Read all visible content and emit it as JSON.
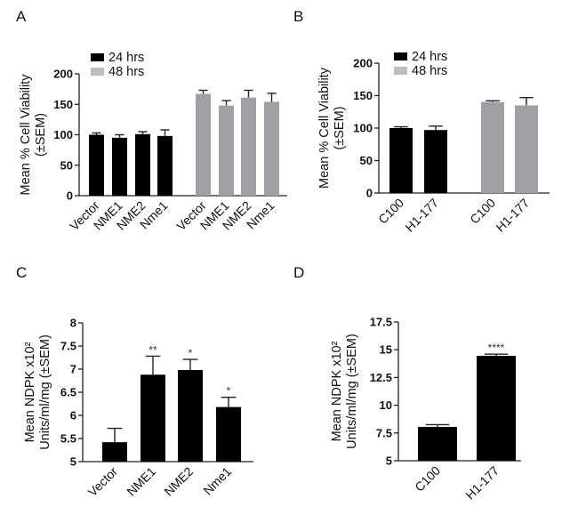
{
  "chart_data": [
    {
      "panel": "A",
      "type": "bar",
      "ylabel": [
        "Mean % Cell Viability",
        "(±SEM)"
      ],
      "ylim": [
        0,
        200
      ],
      "yticks": [
        "0",
        "50",
        "100",
        "150",
        "200"
      ],
      "legend": [
        "24 hrs",
        "48 hrs"
      ],
      "legend_placement": "top-left",
      "categories": [
        "Vector",
        "NME1",
        "NME2",
        "Nme1"
      ],
      "series": [
        {
          "name": "24 hrs",
          "color": "#000000",
          "values": [
            100,
            95,
            101,
            98
          ],
          "sem": [
            3,
            5,
            4,
            10
          ]
        },
        {
          "name": "48 hrs",
          "color": "#a0a0a4",
          "values": [
            167,
            148,
            161,
            154
          ],
          "sem": [
            6,
            8,
            12,
            14
          ]
        }
      ]
    },
    {
      "panel": "B",
      "type": "bar",
      "ylabel": [
        "Mean % Cell Viability",
        "(±SEM)"
      ],
      "ylim": [
        0,
        200
      ],
      "yticks": [
        "0",
        "50",
        "100",
        "150",
        "200"
      ],
      "legend": [
        "24 hrs",
        "48 hrs"
      ],
      "legend_placement": "top-left",
      "categories": [
        "C100",
        "H1-177"
      ],
      "series": [
        {
          "name": "24 hrs",
          "color": "#000000",
          "values": [
            100,
            97
          ],
          "sem": [
            2,
            6
          ]
        },
        {
          "name": "48 hrs",
          "color": "#a0a0a4",
          "values": [
            140,
            135
          ],
          "sem": [
            2,
            12
          ]
        }
      ]
    },
    {
      "panel": "C",
      "type": "bar",
      "ylabel": [
        "Mean NDPK x10²",
        "Units/ml/mg (±SEM)"
      ],
      "ylim": [
        5,
        8
      ],
      "yticks": [
        "5",
        "5.5",
        "6",
        "6.5",
        "7",
        "7.5",
        "8"
      ],
      "categories": [
        "Vector",
        "NME1",
        "NME2",
        "Nme1"
      ],
      "series": [
        {
          "name": "NDPK",
          "color": "#000000",
          "values": [
            5.42,
            6.88,
            6.98,
            6.18
          ],
          "sem": [
            0.3,
            0.4,
            0.23,
            0.21
          ]
        }
      ],
      "annotations": [
        "",
        "**",
        "*",
        "*"
      ]
    },
    {
      "panel": "D",
      "type": "bar",
      "ylabel": [
        "Mean NDPK x10²",
        "Units/ml/mg (±SEM)"
      ],
      "ylim": [
        5,
        17.5
      ],
      "yticks": [
        "5",
        "7.5",
        "10",
        "12.5",
        "15",
        "17.5"
      ],
      "categories": [
        "C100",
        "H1-177"
      ],
      "series": [
        {
          "name": "NDPK",
          "color": "#000000",
          "values": [
            8.05,
            14.45
          ],
          "sem": [
            0.2,
            0.15
          ]
        }
      ],
      "annotations": [
        "",
        "****"
      ]
    }
  ],
  "colors": {
    "legend_gray": "#bdbdbd",
    "axis": "#222222"
  }
}
